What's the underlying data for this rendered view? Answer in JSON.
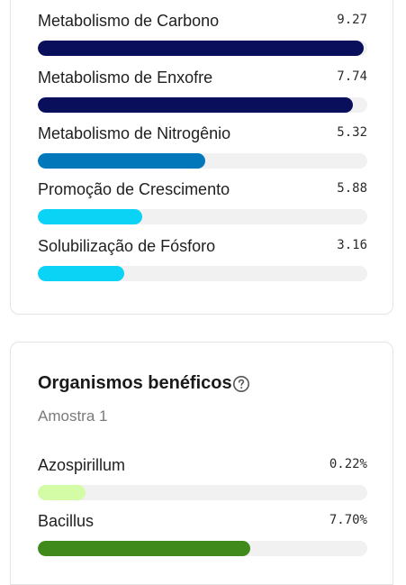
{
  "metabolism": {
    "items": [
      {
        "label": "Metabolismo de Carbono",
        "value": "9.27",
        "fraction": 0.989,
        "color": "#0a0f5c"
      },
      {
        "label": "Metabolismo de Enxofre",
        "value": "7.74",
        "fraction": 0.955,
        "color": "#0a0f5c"
      },
      {
        "label": "Metabolismo de Nitrogênio",
        "value": "5.32",
        "fraction": 0.508,
        "color": "#0278bb"
      },
      {
        "label": "Promoção de Crescimento",
        "value": "5.88",
        "fraction": 0.317,
        "color": "#0ad3f5"
      },
      {
        "label": "Solubilização de Fósforo",
        "value": "3.16",
        "fraction": 0.262,
        "color": "#0ad3f5"
      }
    ]
  },
  "beneficial": {
    "title": "Organismos benéficos",
    "help_icon": "help-circle-icon",
    "subtitle": "Amostra 1",
    "items": [
      {
        "label": "Azospirillum",
        "value": "0.22%",
        "fraction": 0.145,
        "color": "#d4fba5"
      },
      {
        "label": "Bacillus",
        "value": "7.70%",
        "fraction": 0.645,
        "color": "#3f8a1a"
      }
    ]
  }
}
